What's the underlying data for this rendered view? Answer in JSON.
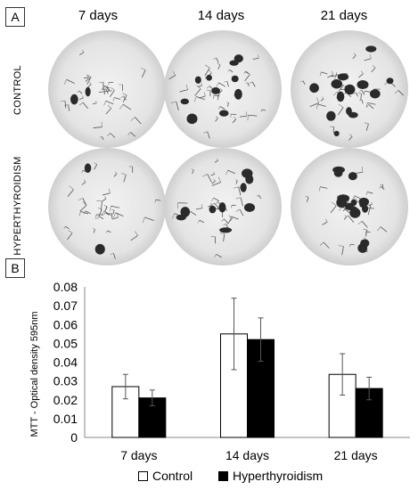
{
  "panel_a": {
    "tag": "A",
    "columns": [
      "7 days",
      "14 days",
      "21 days"
    ],
    "rows": [
      "CONTROL",
      "HYPERTHYROIDISM"
    ]
  },
  "panel_b": {
    "tag": "B"
  },
  "chart_data": {
    "type": "bar",
    "categories": [
      "7 days",
      "14 days",
      "21 days"
    ],
    "series": [
      {
        "name": "Control",
        "color": "#ffffff",
        "values": [
          0.027,
          0.055,
          0.0335
        ],
        "errors": [
          0.0065,
          0.019,
          0.011
        ]
      },
      {
        "name": "Hyperthyroidism",
        "color": "#000000",
        "values": [
          0.021,
          0.052,
          0.026
        ],
        "errors": [
          0.0042,
          0.0115,
          0.006
        ]
      }
    ],
    "ylabel": "MTT - Optical density 595nm",
    "xlabel": "",
    "ylim": [
      0,
      0.08
    ],
    "yticks": [
      "0.08",
      "0.07",
      "0.06",
      "0.05",
      "0.04",
      "0.03",
      "0.02",
      "0.01",
      "0"
    ],
    "legend_position": "bottom-center",
    "grid": false
  }
}
